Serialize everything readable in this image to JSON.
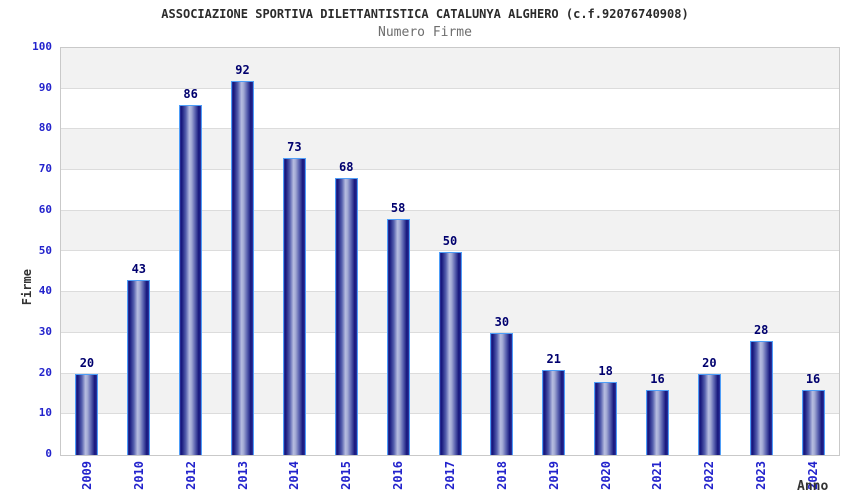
{
  "chart_data": {
    "type": "bar",
    "title": "ASSOCIAZIONE SPORTIVA DILETTANTISTICA CATALUNYA ALGHERO (c.f.92076740908)",
    "subtitle": "Numero Firme",
    "xlabel": "Anno",
    "ylabel": "Firme",
    "categories": [
      "2009",
      "2010",
      "2012",
      "2013",
      "2014",
      "2015",
      "2016",
      "2017",
      "2018",
      "2019",
      "2020",
      "2021",
      "2022",
      "2023",
      "2024"
    ],
    "values": [
      20,
      43,
      86,
      92,
      73,
      68,
      58,
      50,
      30,
      21,
      18,
      16,
      20,
      28,
      16
    ],
    "ylim": [
      0,
      100
    ],
    "ytick_step": 10,
    "yticks": [
      0,
      10,
      20,
      30,
      40,
      50,
      60,
      70,
      80,
      90,
      100
    ],
    "grid": "horizontal-banded",
    "legend_position": "none",
    "colors": {
      "bar_dark": "#14147a",
      "bar_light": "#b7bde0",
      "bar_border": "#4e9ef8",
      "tick_label": "#2323cc",
      "value_label": "#00006e",
      "band_gray": "#f2f2f2",
      "band_white": "#ffffff",
      "grid_line": "#dcdcdc",
      "plot_border": "#c9c9c9",
      "title_color": "#2b2b2b",
      "subtitle_color": "#6e6e6e",
      "axis_title_color": "#333333"
    }
  }
}
